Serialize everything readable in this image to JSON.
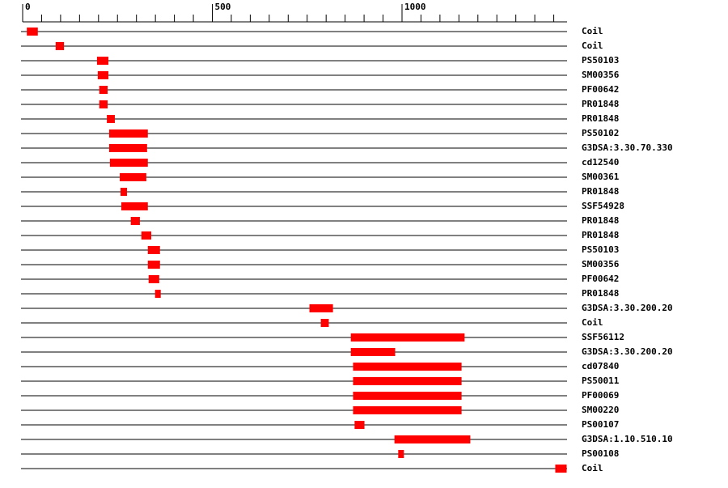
{
  "chart_data": {
    "type": "range",
    "categories": [
      "Coil",
      "Coil",
      "PS50103",
      "SM00356",
      "PF00642",
      "PR01848",
      "PR01848",
      "PS50102",
      "G3DSA:3.30.70.330",
      "cd12540",
      "SM00361",
      "PR01848",
      "SSF54928",
      "PR01848",
      "PR01848",
      "PS50103",
      "SM00356",
      "PF00642",
      "PR01848",
      "G3DSA:3.30.200.20",
      "Coil",
      "SSF56112",
      "G3DSA:3.30.200.20",
      "cd07840",
      "PS50011",
      "PF00069",
      "SM00220",
      "PS00107",
      "G3DSA:1.10.510.10",
      "PS00108",
      "Coil"
    ],
    "starts": [
      11,
      87,
      196,
      198,
      202,
      202,
      222,
      228,
      228,
      230,
      256,
      258,
      260,
      285,
      313,
      330,
      330,
      332,
      349,
      756,
      786,
      865,
      865,
      871,
      871,
      871,
      871,
      875,
      980,
      990,
      1404
    ],
    "ends": [
      40,
      109,
      226,
      226,
      224,
      224,
      243,
      330,
      328,
      330,
      326,
      275,
      330,
      309,
      339,
      362,
      362,
      360,
      364,
      818,
      807,
      1165,
      982,
      1157,
      1157,
      1157,
      1157,
      901,
      1180,
      1005,
      1434
    ],
    "color": "#ff0000",
    "xlim": [
      0,
      1435
    ],
    "xticks": [
      0,
      500,
      1000
    ],
    "xminorticks": [
      50,
      100,
      150,
      200,
      250,
      300,
      350,
      400,
      450,
      550,
      600,
      650,
      700,
      750,
      800,
      850,
      900,
      950,
      1050,
      1100,
      1150,
      1200,
      1250,
      1300,
      1350,
      1400
    ]
  }
}
